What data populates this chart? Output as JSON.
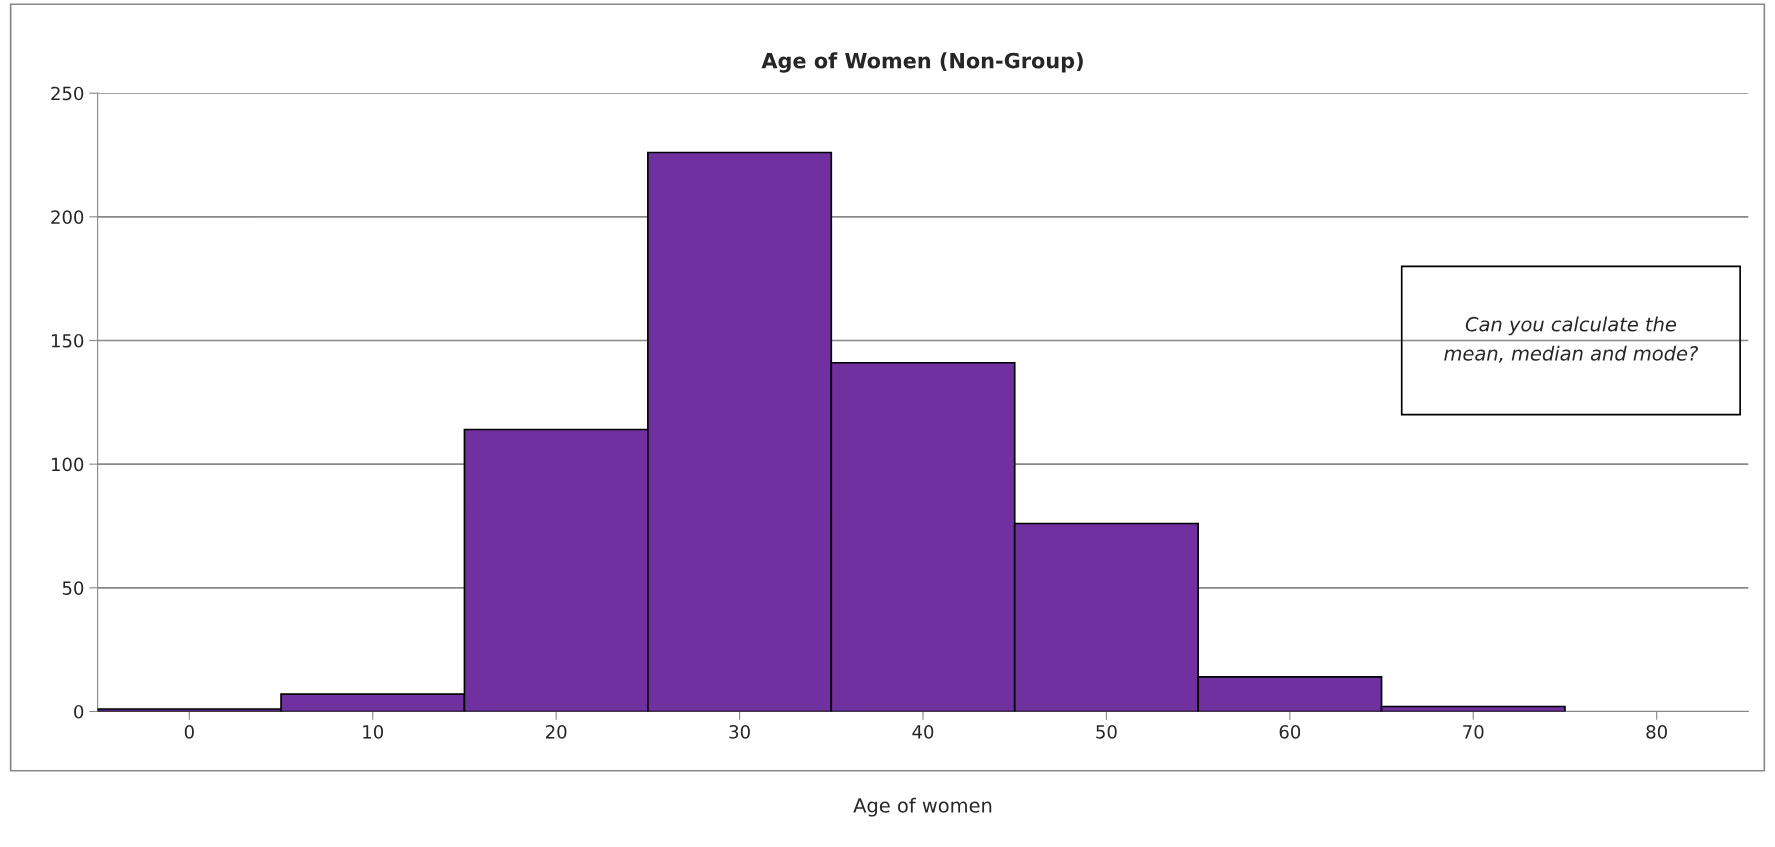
{
  "chart_data": {
    "type": "bar",
    "title": "Age of Women (Non-Group)",
    "xlabel": "Age of women",
    "categories": [
      "0",
      "10",
      "20",
      "30",
      "40",
      "50",
      "60",
      "70",
      "80"
    ],
    "values": [
      1,
      7,
      114,
      226,
      141,
      76,
      14,
      2,
      null
    ],
    "color": "#7030a0",
    "ylim": [
      0,
      250
    ],
    "yticks": [
      0,
      50,
      100,
      150,
      200,
      250
    ],
    "grid": "y",
    "annotations": [
      "Can you calculate the\nmean, median and mode?"
    ]
  }
}
